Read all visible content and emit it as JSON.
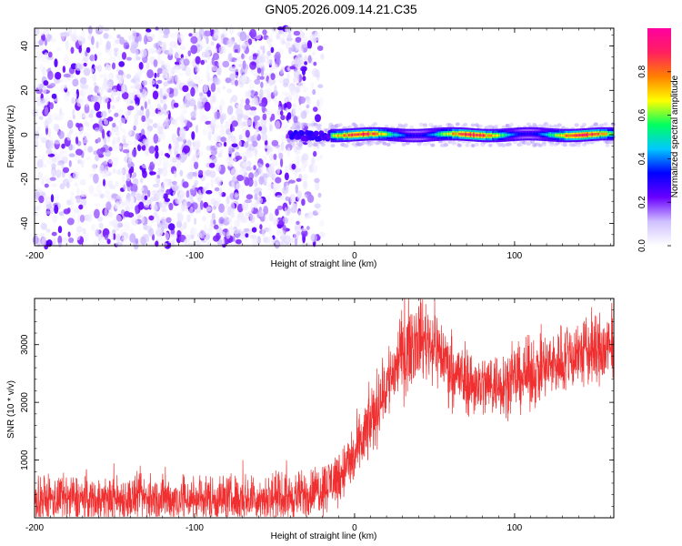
{
  "title": "GN05.2026.009.14.21.C35",
  "chart_data": [
    {
      "type": "heatmap",
      "title": "GN05.2026.009.14.21.C35",
      "xlabel": "Height of straight line (km)",
      "ylabel": "Frequency (Hz)",
      "xlim": [
        -200,
        162
      ],
      "ylim": [
        -50,
        48
      ],
      "x_ticks": [
        -200,
        -100,
        0,
        100
      ],
      "y_ticks": [
        40,
        20,
        0,
        -20,
        -40
      ],
      "grid": false,
      "description_of_data": {
        "noise_region_x": [
          -200,
          -20
        ],
        "noise_amplitude_range": [
          0.02,
          0.25
        ],
        "transition_x": [
          -40,
          -15
        ],
        "signal_band_center_hz": 0,
        "signal_band_halfwidth_hz": 3,
        "signal_region_x": [
          -15,
          162
        ],
        "signal_amplitude_range": [
          0.3,
          1.0
        ]
      },
      "colorbar": {
        "label": "Normalized spectral amplitude",
        "range": [
          0,
          1
        ],
        "ticks": [
          0.0,
          0.2,
          0.4,
          0.6,
          0.8
        ],
        "tick_labels": [
          "0.0",
          "0.2",
          "0.4",
          "0.6",
          "0.8"
        ],
        "colors": [
          "#ffffff",
          "#cfc0ff",
          "#6a00ff",
          "#0000ff",
          "#00c8ff",
          "#00ff60",
          "#ffff00",
          "#ff8000",
          "#ff2060",
          "#ff00a0"
        ]
      }
    },
    {
      "type": "line",
      "xlabel": "Height of straight line (km)",
      "ylabel": "SNR (10 * v/v)",
      "xlim": [
        -200,
        162
      ],
      "ylim": [
        0,
        3800
      ],
      "x_ticks": [
        -200,
        -100,
        0,
        100
      ],
      "y_ticks": [
        1000,
        2000,
        3000
      ],
      "grid": false,
      "series": [
        {
          "color": "#f03030",
          "x": [
            -200,
            -180,
            -160,
            -140,
            -120,
            -100,
            -80,
            -60,
            -40,
            -30,
            -20,
            -10,
            0,
            10,
            20,
            30,
            40,
            50,
            60,
            70,
            80,
            90,
            100,
            110,
            120,
            130,
            140,
            150,
            162
          ],
          "y": [
            320,
            330,
            320,
            330,
            330,
            330,
            340,
            340,
            350,
            420,
            520,
            720,
            1050,
            1650,
            2300,
            2850,
            3150,
            3000,
            2600,
            2350,
            2300,
            2320,
            2400,
            2500,
            2600,
            2750,
            2850,
            2900,
            2900
          ],
          "noise_amplitude": [
            200,
            200,
            200,
            200,
            200,
            200,
            200,
            200,
            200,
            200,
            220,
            240,
            260,
            300,
            330,
            350,
            350,
            330,
            300,
            280,
            280,
            280,
            280,
            290,
            300,
            310,
            320,
            330,
            330
          ]
        }
      ]
    }
  ]
}
